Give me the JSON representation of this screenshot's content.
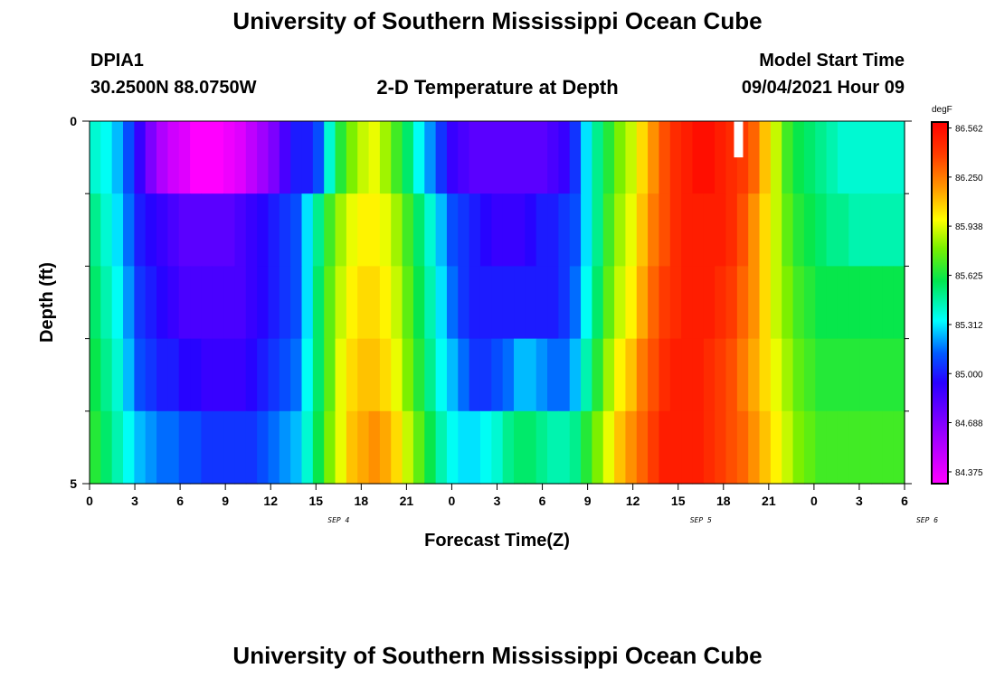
{
  "header": {
    "title": "University of Southern Mississippi Ocean Cube",
    "station_id": "DPIA1",
    "location": "30.2500N  88.0750W",
    "plot_title": "2-D Temperature at Depth",
    "model_start_label": "Model Start Time",
    "model_start_value": "09/04/2021 Hour 09"
  },
  "footer": {
    "title": "University of Southern Mississippi Ocean Cube"
  },
  "colors": {
    "background": "#ffffff",
    "gap": "#ffffff"
  },
  "chart_data": {
    "type": "heatmap",
    "title": "2-D Temperature at Depth",
    "xlabel": "Forecast Time(Z)",
    "ylabel": "Depth (ft)",
    "x_tick_labels": [
      "0",
      "3",
      "6",
      "9",
      "12",
      "15",
      "18",
      "21",
      "0",
      "3",
      "6",
      "9",
      "12",
      "15",
      "18",
      "21",
      "0",
      "3",
      "6"
    ],
    "date_labels": [
      {
        "label": "SEP 4",
        "tick_index": 6
      },
      {
        "label": "SEP 5",
        "tick_index": 14
      },
      {
        "label": "SEP 6",
        "tick_index": 19
      }
    ],
    "y_tick_labels": [
      "0",
      "5"
    ],
    "ylim": [
      0,
      5
    ],
    "y_inverted": true,
    "depth_levels": 5,
    "colorbar": {
      "unit": "degF",
      "min": 84.3,
      "max": 86.6,
      "labels": [
        "86.562",
        "86.250",
        "85.938",
        "85.625",
        "85.312",
        "85.000",
        "84.688",
        "84.375"
      ]
    },
    "gaps": [
      {
        "hour": 43,
        "row": 0
      }
    ],
    "rows": [
      {
        "depth": 0,
        "temps": [
          85.4,
          85.35,
          85.25,
          85.1,
          84.9,
          84.7,
          84.55,
          84.45,
          84.4,
          84.3,
          84.3,
          84.3,
          84.35,
          84.4,
          84.5,
          84.6,
          84.7,
          84.85,
          85.0,
          85.0,
          85.1,
          85.4,
          85.65,
          85.8,
          85.9,
          85.95,
          85.85,
          85.7,
          85.55,
          85.35,
          85.2,
          85.05,
          84.9,
          84.85,
          84.8,
          84.8,
          84.8,
          84.8,
          84.8,
          84.8,
          84.8,
          84.85,
          84.9,
          85.05,
          85.3,
          85.5,
          85.65,
          85.8,
          85.9,
          86.05,
          86.2,
          86.35,
          86.45,
          86.5,
          86.55,
          86.55,
          86.5,
          86.45,
          86.4,
          86.3,
          86.1,
          85.9,
          85.7,
          85.6,
          85.55,
          85.5,
          85.45,
          85.4,
          85.4,
          85.4,
          85.4,
          85.4,
          85.4
        ]
      },
      {
        "depth": 1,
        "temps": [
          85.5,
          85.4,
          85.3,
          85.15,
          85.0,
          84.95,
          84.9,
          84.85,
          84.8,
          84.8,
          84.8,
          84.8,
          84.8,
          84.85,
          84.9,
          84.95,
          85.0,
          85.05,
          85.1,
          85.3,
          85.5,
          85.7,
          85.85,
          85.95,
          86.0,
          86.0,
          85.95,
          85.85,
          85.7,
          85.55,
          85.4,
          85.25,
          85.1,
          85.05,
          85.0,
          84.95,
          84.9,
          84.9,
          84.9,
          84.95,
          85.0,
          85.0,
          85.05,
          85.1,
          85.3,
          85.5,
          85.7,
          85.85,
          85.95,
          86.1,
          86.25,
          86.35,
          86.45,
          86.5,
          86.5,
          86.5,
          86.5,
          86.45,
          86.35,
          86.2,
          86.05,
          85.9,
          85.75,
          85.65,
          85.6,
          85.55,
          85.5,
          85.5,
          85.45,
          85.45,
          85.45,
          85.45,
          85.45
        ]
      },
      {
        "depth": 2,
        "temps": [
          85.55,
          85.45,
          85.35,
          85.2,
          85.05,
          85.0,
          84.95,
          84.9,
          84.85,
          84.85,
          84.85,
          84.85,
          84.85,
          84.85,
          84.9,
          84.95,
          85.0,
          85.05,
          85.1,
          85.3,
          85.55,
          85.75,
          85.9,
          86.0,
          86.05,
          86.05,
          86.0,
          85.9,
          85.75,
          85.6,
          85.45,
          85.3,
          85.15,
          85.05,
          85.0,
          85.0,
          85.0,
          85.0,
          85.0,
          85.0,
          85.0,
          85.0,
          85.05,
          85.15,
          85.35,
          85.55,
          85.75,
          85.9,
          86.0,
          86.15,
          86.3,
          86.4,
          86.45,
          86.5,
          86.5,
          86.5,
          86.45,
          86.4,
          86.3,
          86.2,
          86.05,
          85.9,
          85.8,
          85.7,
          85.65,
          85.6,
          85.6,
          85.6,
          85.6,
          85.6,
          85.6,
          85.6,
          85.6
        ]
      },
      {
        "depth": 3,
        "temps": [
          85.6,
          85.5,
          85.4,
          85.25,
          85.1,
          85.05,
          85.0,
          85.0,
          84.95,
          84.95,
          84.9,
          84.9,
          84.9,
          84.9,
          84.95,
          85.0,
          85.05,
          85.1,
          85.15,
          85.35,
          85.55,
          85.75,
          85.95,
          86.05,
          86.1,
          86.1,
          86.05,
          85.95,
          85.8,
          85.65,
          85.5,
          85.35,
          85.25,
          85.15,
          85.05,
          85.05,
          85.1,
          85.15,
          85.25,
          85.25,
          85.2,
          85.15,
          85.15,
          85.25,
          85.45,
          85.65,
          85.85,
          86.0,
          86.1,
          86.25,
          86.35,
          86.45,
          86.5,
          86.5,
          86.5,
          86.45,
          86.4,
          86.35,
          86.25,
          86.15,
          86.05,
          85.95,
          85.85,
          85.75,
          85.7,
          85.65,
          85.65,
          85.65,
          85.65,
          85.65,
          85.65,
          85.65,
          85.65
        ]
      },
      {
        "depth": 4,
        "temps": [
          85.65,
          85.55,
          85.45,
          85.35,
          85.25,
          85.2,
          85.15,
          85.15,
          85.1,
          85.1,
          85.05,
          85.05,
          85.05,
          85.05,
          85.05,
          85.1,
          85.15,
          85.2,
          85.25,
          85.4,
          85.6,
          85.8,
          85.95,
          86.1,
          86.15,
          86.2,
          86.15,
          86.05,
          85.9,
          85.75,
          85.6,
          85.45,
          85.35,
          85.3,
          85.3,
          85.35,
          85.4,
          85.5,
          85.55,
          85.55,
          85.5,
          85.45,
          85.45,
          85.5,
          85.65,
          85.8,
          85.95,
          86.1,
          86.2,
          86.3,
          86.4,
          86.5,
          86.5,
          86.5,
          86.5,
          86.45,
          86.4,
          86.35,
          86.3,
          86.2,
          86.1,
          86.0,
          85.9,
          85.8,
          85.75,
          85.7,
          85.7,
          85.7,
          85.7,
          85.7,
          85.7,
          85.7,
          85.7
        ]
      }
    ]
  }
}
